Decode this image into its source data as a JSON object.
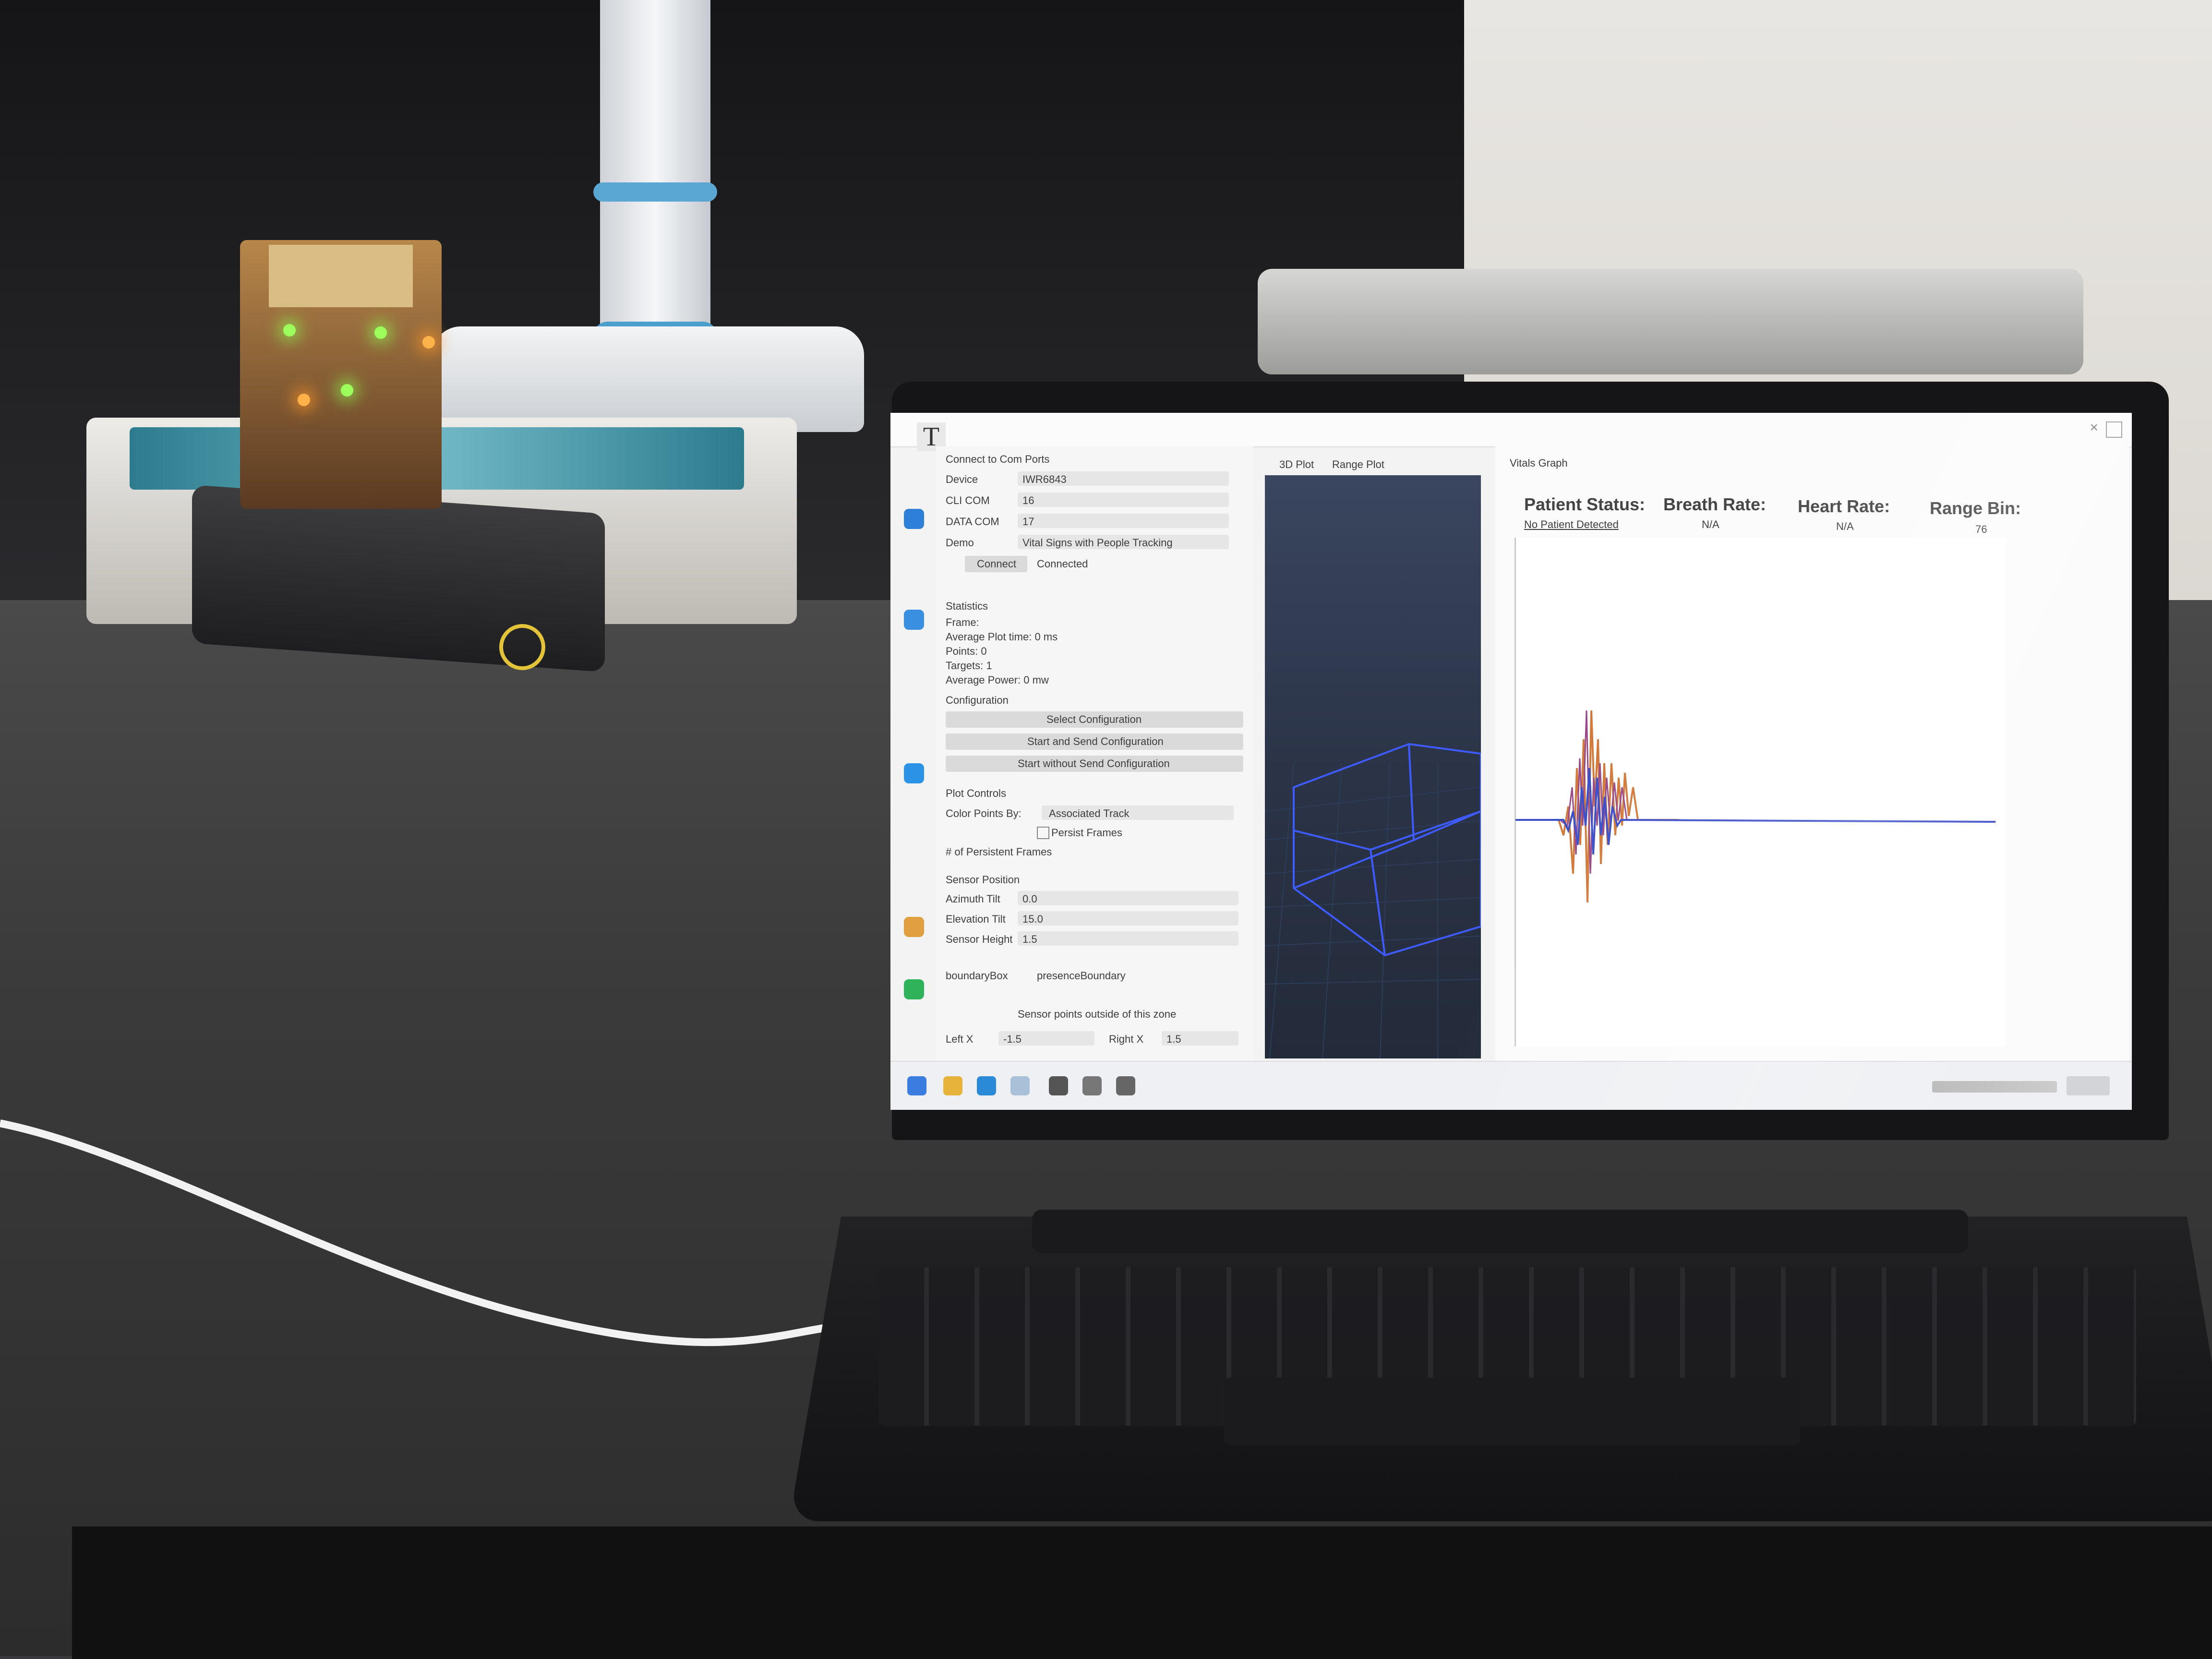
{
  "app": {
    "title_icon_letter": "T"
  },
  "left_panel": {
    "sections": [
      "Connect to Com Ports",
      "Statistics",
      "Configuration",
      "Plot Controls",
      "Sensor Position"
    ],
    "fields": [
      {
        "label": "Device",
        "value": "IWR6843"
      },
      {
        "label": "CLI COM",
        "value": "16"
      },
      {
        "label": "DATA COM",
        "value": "17"
      },
      {
        "label": "Demo",
        "value": "Vital Signs with People Tracking"
      }
    ],
    "connect_button": "Connect",
    "connect_status": "Connected",
    "stats": [
      "Frame: ",
      "Average Plot time: 0 ms",
      "Points: 0",
      "Targets: 1",
      "Average Power: 0 mw"
    ],
    "buttons": [
      "Select Configuration",
      "Start and Send Configuration",
      "Start without Send Configuration"
    ],
    "plot_controls": [
      {
        "label": "Color Points By:",
        "value": "Associated Track"
      },
      {
        "label": "",
        "value": "Persist Frames"
      },
      {
        "label": "# of Persistent Frames",
        "value": ""
      }
    ],
    "sensor_position": [
      {
        "label": "Azimuth Tilt",
        "value": "0.0"
      },
      {
        "label": "Elevation Tilt",
        "value": "15.0"
      },
      {
        "label": "Sensor Height",
        "value": "1.5"
      }
    ],
    "bottom": [
      {
        "label": "boundaryBox",
        "value": "presenceBoundary"
      }
    ],
    "description": "Sensor points outside of this zone",
    "lr": {
      "left_label": "Left X",
      "left_value": "-1.5",
      "right_label": "Right X",
      "right_value": "1.5"
    }
  },
  "center_tabs": [
    "3D Plot",
    "Range Plot"
  ],
  "right_panel": {
    "tab": "Vitals Graph",
    "header": {
      "patient_status_label": "Patient Status:",
      "breath_rate_label": "Breath Rate:",
      "heart_rate_label": "Heart Rate:",
      "range_bin_label": "Range Bin:",
      "patient_status_value": "No Patient Detected",
      "breath_rate_value": "N/A",
      "heart_rate_value": "N/A",
      "range_bin_value": "76"
    }
  },
  "colors": {
    "screen_bg": "#f3f3f3",
    "series_orange": "#d27a3c",
    "series_blue": "#3c4fc8",
    "series_purple": "#9a4a8a",
    "view3d_grid": "#2f5cff"
  }
}
